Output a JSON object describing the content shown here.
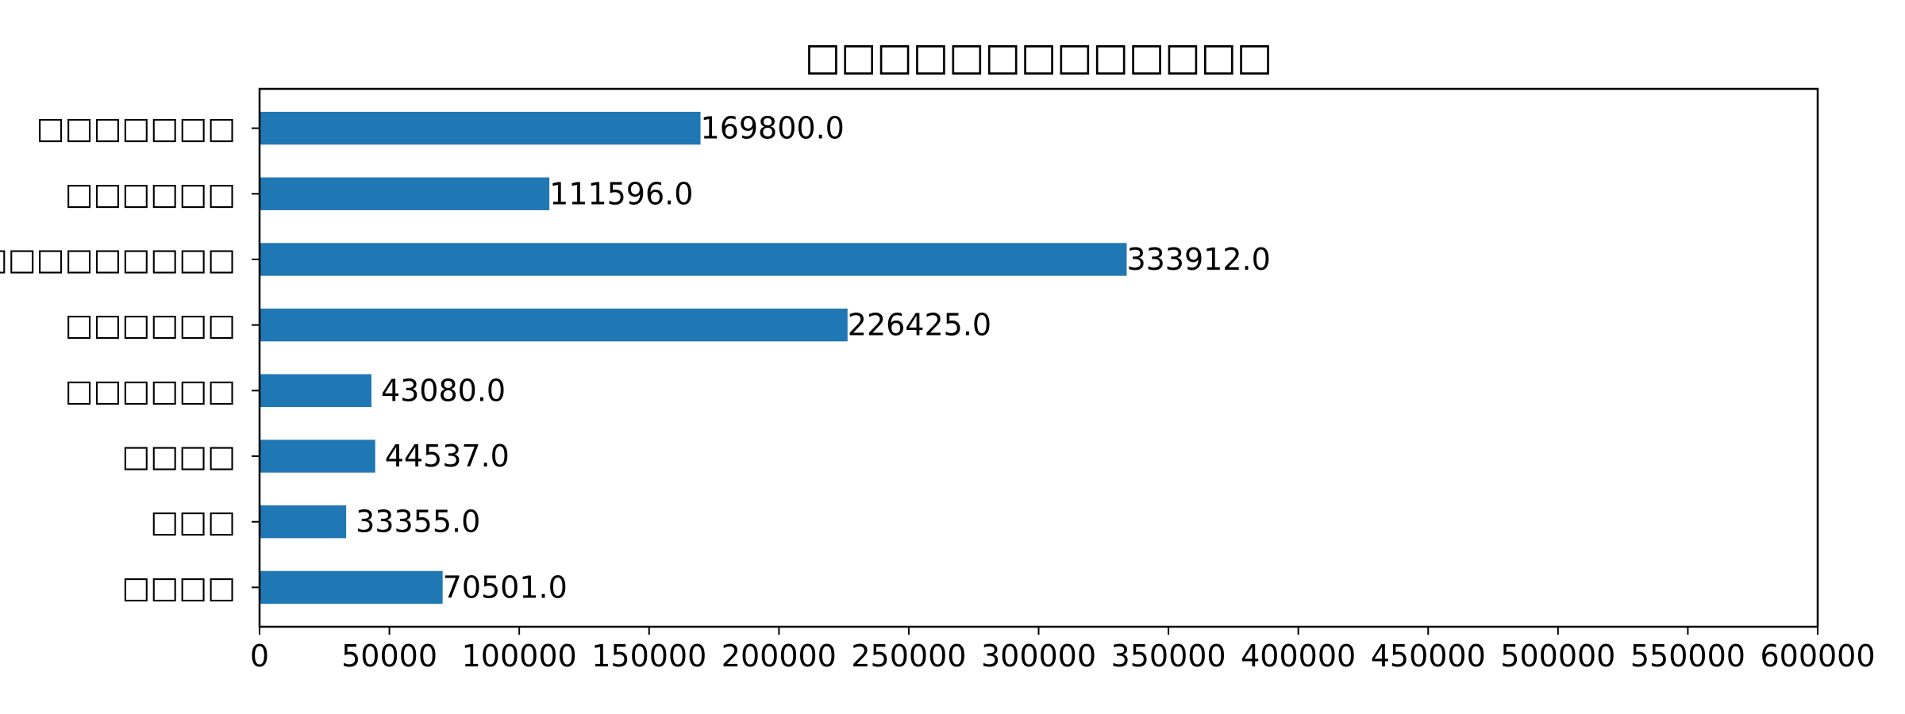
{
  "chart_data": {
    "type": "bar",
    "orientation": "horizontal",
    "title": "□□□□□□□□□□□□□",
    "xlabel": "",
    "ylabel": "",
    "categories": [
      "□□□□",
      "□□□",
      "□□□□",
      "□□□□□□",
      "□□□□□□",
      "□□□□□□□□□□□",
      "□□□□□□",
      "□□□□□□□"
    ],
    "values": [
      70501.0,
      33355.0,
      44537.0,
      43080.0,
      226425.0,
      333912.0,
      111596.0,
      169800.0
    ],
    "value_labels": [
      "70501.0",
      "33355.0",
      "44537.0",
      "43080.0",
      "226425.0",
      "333912.0",
      "111596.0",
      "169800.0"
    ],
    "xlim": [
      0,
      600000
    ],
    "xticks": [
      0,
      50000,
      100000,
      150000,
      200000,
      250000,
      300000,
      350000,
      400000,
      450000,
      500000,
      550000,
      600000
    ],
    "xtick_labels": [
      "0",
      "50000",
      "100000",
      "150000",
      "200000",
      "250000",
      "300000",
      "350000",
      "400000",
      "450000",
      "500000",
      "550000",
      "600000"
    ],
    "grid": false,
    "bar_color": "#1f77b4"
  }
}
